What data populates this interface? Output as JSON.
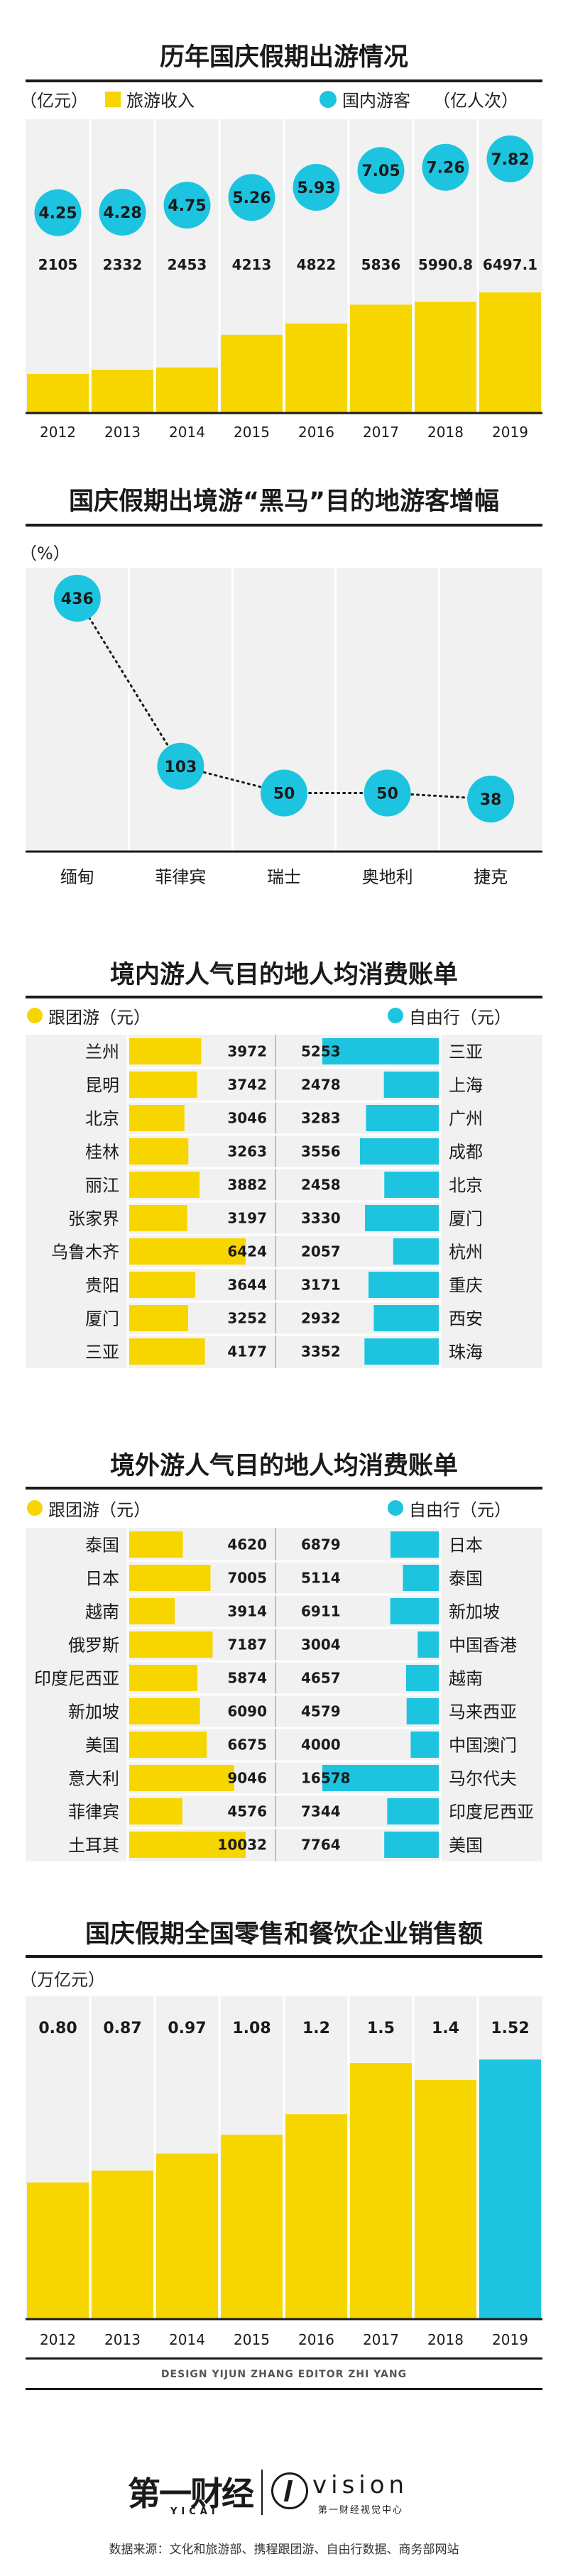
{
  "colors": {
    "yellow": "#f7d600",
    "cyan": "#1dc4e0",
    "dark": "#1a1a1a",
    "panel": "#f1f1f1"
  },
  "chart_data": [
    {
      "type": "bar",
      "title": "历年国庆假期出游情况",
      "unit_left": "（亿元）",
      "unit_right": "（亿人次）",
      "categories": [
        "2012",
        "2013",
        "2014",
        "2015",
        "2016",
        "2017",
        "2018",
        "2019"
      ],
      "series": [
        {
          "name": "旅游收入",
          "type": "bar",
          "values": [
            2105,
            2332,
            2453,
            4213,
            4822,
            5836,
            5990.8,
            6497.1
          ],
          "labels": [
            "2105",
            "2332",
            "2453",
            "4213",
            "4822",
            "5836",
            "5990.8",
            "6497.1"
          ]
        },
        {
          "name": "国内游客",
          "type": "bubble",
          "values": [
            4.25,
            4.28,
            4.75,
            5.26,
            5.93,
            7.05,
            7.26,
            7.82
          ],
          "labels": [
            "4.25",
            "4.28",
            "4.75",
            "5.26",
            "5.93",
            "7.05",
            "7.26",
            "7.82"
          ]
        }
      ]
    },
    {
      "type": "line",
      "title": "国庆假期出境游“黑马”目的地游客增幅",
      "unit": "（%）",
      "categories": [
        "缅甸",
        "菲律宾",
        "瑞士",
        "奥地利",
        "捷克"
      ],
      "values": [
        436,
        103,
        50,
        50,
        38
      ],
      "labels": [
        "436",
        "103",
        "50",
        "50",
        "38"
      ]
    },
    {
      "type": "bar",
      "title": "境内游人气目的地人均消费账单",
      "left_legend": "跟团游（元）",
      "right_legend": "自由行（元）",
      "left_categories": [
        "兰州",
        "昆明",
        "北京",
        "桂林",
        "丽江",
        "张家界",
        "乌鲁木齐",
        "贵阳",
        "厦门",
        "三亚"
      ],
      "left_values": [
        3972,
        3742,
        3046,
        3263,
        3882,
        3197,
        6424,
        3644,
        3252,
        4177
      ],
      "left_labels": [
        "3972",
        "3742",
        "3046",
        "3263",
        "3882",
        "3197",
        "6424",
        "3644",
        "3252",
        "4177"
      ],
      "right_categories": [
        "三亚",
        "上海",
        "广州",
        "成都",
        "北京",
        "厦门",
        "杭州",
        "重庆",
        "西安",
        "珠海"
      ],
      "right_values": [
        5253,
        2478,
        3283,
        3556,
        2458,
        3330,
        2057,
        3171,
        2932,
        3352
      ],
      "right_labels": [
        "5253",
        "2478",
        "3283",
        "3556",
        "2458",
        "3330",
        "2057",
        "3171",
        "2932",
        "3352"
      ]
    },
    {
      "type": "bar",
      "title": "境外游人气目的地人均消费账单",
      "left_legend": "跟团游（元）",
      "right_legend": "自由行（元）",
      "left_categories": [
        "泰国",
        "日本",
        "越南",
        "俄罗斯",
        "印度尼西亚",
        "新加坡",
        "美国",
        "意大利",
        "菲律宾",
        "土耳其"
      ],
      "left_values": [
        4620,
        7005,
        3914,
        7187,
        5874,
        6090,
        6675,
        9046,
        4576,
        10032
      ],
      "left_labels": [
        "4620",
        "7005",
        "3914",
        "7187",
        "5874",
        "6090",
        "6675",
        "9046",
        "4576",
        "10032"
      ],
      "right_categories": [
        "日本",
        "泰国",
        "新加坡",
        "中国香港",
        "越南",
        "马来西亚",
        "中国澳门",
        "马尔代夫",
        "印度尼西亚",
        "美国"
      ],
      "right_values": [
        6879,
        5114,
        6911,
        3004,
        4657,
        4579,
        4000,
        16578,
        7344,
        7764
      ],
      "right_labels": [
        "6879",
        "5114",
        "6911",
        "3004",
        "4657",
        "4579",
        "4000",
        "16578",
        "7344",
        "7764"
      ]
    },
    {
      "type": "bar",
      "title": "国庆假期全国零售和餐饮企业销售额",
      "unit": "（万亿元）",
      "categories": [
        "2012",
        "2013",
        "2014",
        "2015",
        "2016",
        "2017",
        "2018",
        "2019"
      ],
      "values": [
        0.8,
        0.87,
        0.97,
        1.08,
        1.2,
        1.5,
        1.4,
        1.52
      ],
      "labels": [
        "0.80",
        "0.87",
        "0.97",
        "1.08",
        "1.2",
        "1.5",
        "1.4",
        "1.52"
      ],
      "highlight_last": true
    }
  ],
  "footer": {
    "credits": "DESIGN YIJUN ZHANG    EDITOR ZHI YANG",
    "logo1_main": "第一财经",
    "logo1_sub": "YICAI",
    "logo2_main": "vision",
    "logo2_sub": "第一财经视觉中心",
    "source": "数据来源：文化和旅游部、携程跟团游、自由行数据、商务部网站"
  }
}
